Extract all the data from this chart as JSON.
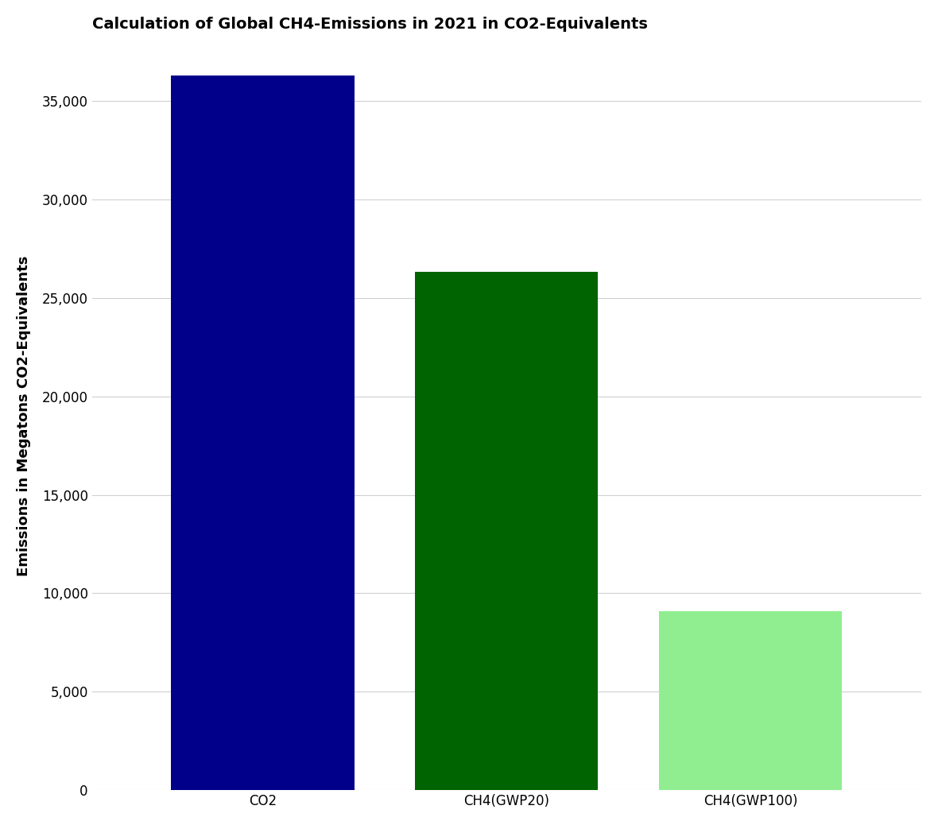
{
  "categories": [
    "CO2",
    "CH4(GWP20)",
    "CH4(GWP100)"
  ],
  "values": [
    36300,
    26300,
    9100
  ],
  "bar_colors": [
    "#00008B",
    "#006400",
    "#90EE90"
  ],
  "title": "Calculation of Global CH4-Emissions in 2021 in CO2-Equivalents",
  "ylabel": "Emissions in Megatons CO2-Equivalents",
  "ylim": [
    0,
    38000
  ],
  "yticks": [
    0,
    5000,
    10000,
    15000,
    20000,
    25000,
    30000,
    35000
  ],
  "background_color": "#ffffff",
  "grid_color": "#d0d0d0",
  "title_fontsize": 14,
  "label_fontsize": 13,
  "tick_fontsize": 12
}
